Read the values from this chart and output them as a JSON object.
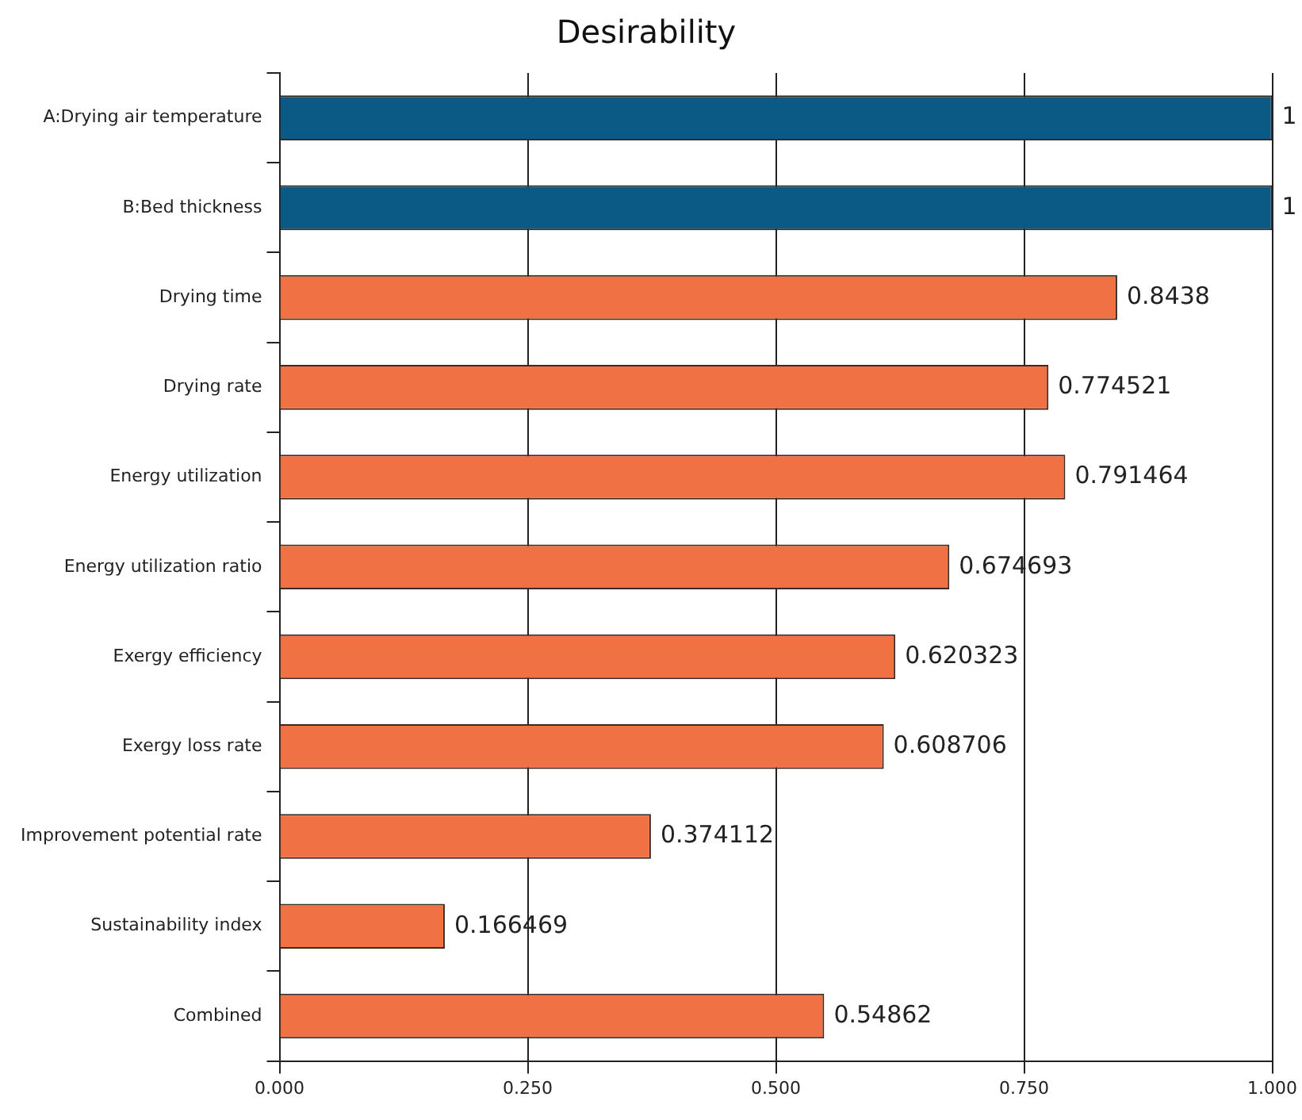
{
  "chart_data": {
    "type": "bar",
    "orientation": "horizontal",
    "title": "Desirability",
    "categories": [
      "A:Drying air temperature",
      "B:Bed thickness",
      "Drying time",
      "Drying rate",
      "Energy utilization",
      "Energy utilization ratio",
      "Exergy efficiency",
      "Exergy loss rate",
      "Improvement potential rate",
      "Sustainability index",
      "Combined"
    ],
    "values": [
      1,
      1,
      0.8438,
      0.774521,
      0.791464,
      0.674693,
      0.620323,
      0.608706,
      0.374112,
      0.166469,
      0.54862
    ],
    "colors": [
      "#0b5a86",
      "#0b5a86",
      "#f07244",
      "#f07244",
      "#f07244",
      "#f07244",
      "#f07244",
      "#f07244",
      "#f07244",
      "#f07244",
      "#f07244"
    ],
    "xlim": [
      0,
      1
    ],
    "xticks": [
      {
        "value": 0,
        "label": "0.000"
      },
      {
        "value": 0.25,
        "label": "0.250"
      },
      {
        "value": 0.5,
        "label": "0.500"
      },
      {
        "value": 0.75,
        "label": "0.750"
      },
      {
        "value": 1,
        "label": "1.000"
      }
    ],
    "grid": "x",
    "data_labels": true
  }
}
